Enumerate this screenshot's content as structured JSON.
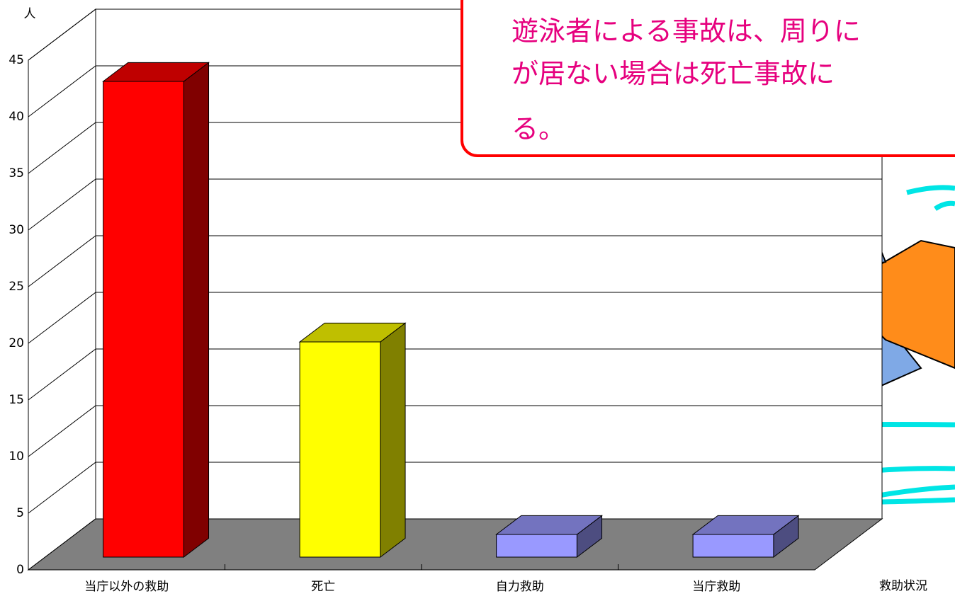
{
  "chart_data": {
    "type": "bar3d",
    "y_label": "人",
    "x_label": "救助状況",
    "categories": [
      "当庁以外の救助",
      "死亡",
      "自力救助",
      "当庁救助"
    ],
    "values": [
      42,
      19,
      2,
      2
    ],
    "colors": [
      "#ff0000",
      "#ffff00",
      "#9999ff",
      "#9999ff"
    ],
    "ylim": [
      0,
      45
    ],
    "yticks": [
      0,
      5,
      10,
      15,
      20,
      25,
      30,
      35,
      40,
      45
    ],
    "grid": true,
    "annotation": [
      "遊泳者による事故は、周りに",
      "が居ない場合は死亡事故に",
      "る。"
    ]
  }
}
